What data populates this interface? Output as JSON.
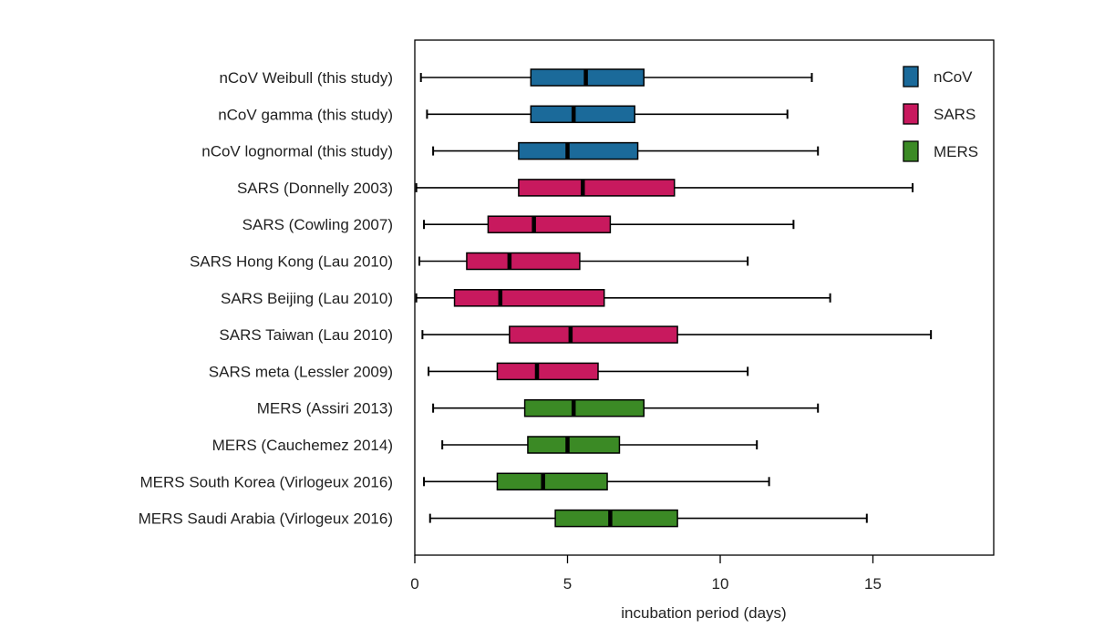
{
  "chart_data": {
    "type": "boxplot",
    "title": "",
    "xlabel": "incubation period (days)",
    "ylabel": "",
    "xlim": [
      0,
      19
    ],
    "xticks": [
      0,
      5,
      10,
      15
    ],
    "orientation": "horizontal",
    "grid": false,
    "legend_position": "top-right",
    "colors": {
      "nCoV": "#1b6a9a",
      "SARS": "#c8195e",
      "MERS": "#3b8a25"
    },
    "legend": [
      {
        "name": "nCoV",
        "color": "#1b6a9a"
      },
      {
        "name": "SARS",
        "color": "#c8195e"
      },
      {
        "name": "MERS",
        "color": "#3b8a25"
      }
    ],
    "series": [
      {
        "label": "nCoV Weibull (this study)",
        "group": "nCoV",
        "min": 0.2,
        "q1": 3.8,
        "median": 5.6,
        "q3": 7.5,
        "max": 13.0
      },
      {
        "label": "nCoV gamma (this study)",
        "group": "nCoV",
        "min": 0.4,
        "q1": 3.8,
        "median": 5.2,
        "q3": 7.2,
        "max": 12.2
      },
      {
        "label": "nCoV lognormal (this study)",
        "group": "nCoV",
        "min": 0.6,
        "q1": 3.4,
        "median": 5.0,
        "q3": 7.3,
        "max": 13.2
      },
      {
        "label": "SARS (Donnelly 2003)",
        "group": "SARS",
        "min": 0.05,
        "q1": 3.4,
        "median": 5.5,
        "q3": 8.5,
        "max": 16.3
      },
      {
        "label": "SARS (Cowling 2007)",
        "group": "SARS",
        "min": 0.3,
        "q1": 2.4,
        "median": 3.9,
        "q3": 6.4,
        "max": 12.4
      },
      {
        "label": "SARS Hong Kong (Lau 2010)",
        "group": "SARS",
        "min": 0.15,
        "q1": 1.7,
        "median": 3.1,
        "q3": 5.4,
        "max": 10.9
      },
      {
        "label": "SARS Beijing (Lau 2010)",
        "group": "SARS",
        "min": 0.05,
        "q1": 1.3,
        "median": 2.8,
        "q3": 6.2,
        "max": 13.6
      },
      {
        "label": "SARS Taiwan (Lau 2010)",
        "group": "SARS",
        "min": 0.25,
        "q1": 3.1,
        "median": 5.1,
        "q3": 8.6,
        "max": 16.9
      },
      {
        "label": "SARS meta (Lessler 2009)",
        "group": "SARS",
        "min": 0.45,
        "q1": 2.7,
        "median": 4.0,
        "q3": 6.0,
        "max": 10.9
      },
      {
        "label": "MERS (Assiri 2013)",
        "group": "MERS",
        "min": 0.6,
        "q1": 3.6,
        "median": 5.2,
        "q3": 7.5,
        "max": 13.2
      },
      {
        "label": "MERS (Cauchemez 2014)",
        "group": "MERS",
        "min": 0.9,
        "q1": 3.7,
        "median": 5.0,
        "q3": 6.7,
        "max": 11.2
      },
      {
        "label": "MERS South Korea (Virlogeux 2016)",
        "group": "MERS",
        "min": 0.3,
        "q1": 2.7,
        "median": 4.2,
        "q3": 6.3,
        "max": 11.6
      },
      {
        "label": "MERS Saudi Arabia (Virlogeux 2016)",
        "group": "MERS",
        "min": 0.5,
        "q1": 4.6,
        "median": 6.4,
        "q3": 8.6,
        "max": 14.8
      }
    ]
  }
}
